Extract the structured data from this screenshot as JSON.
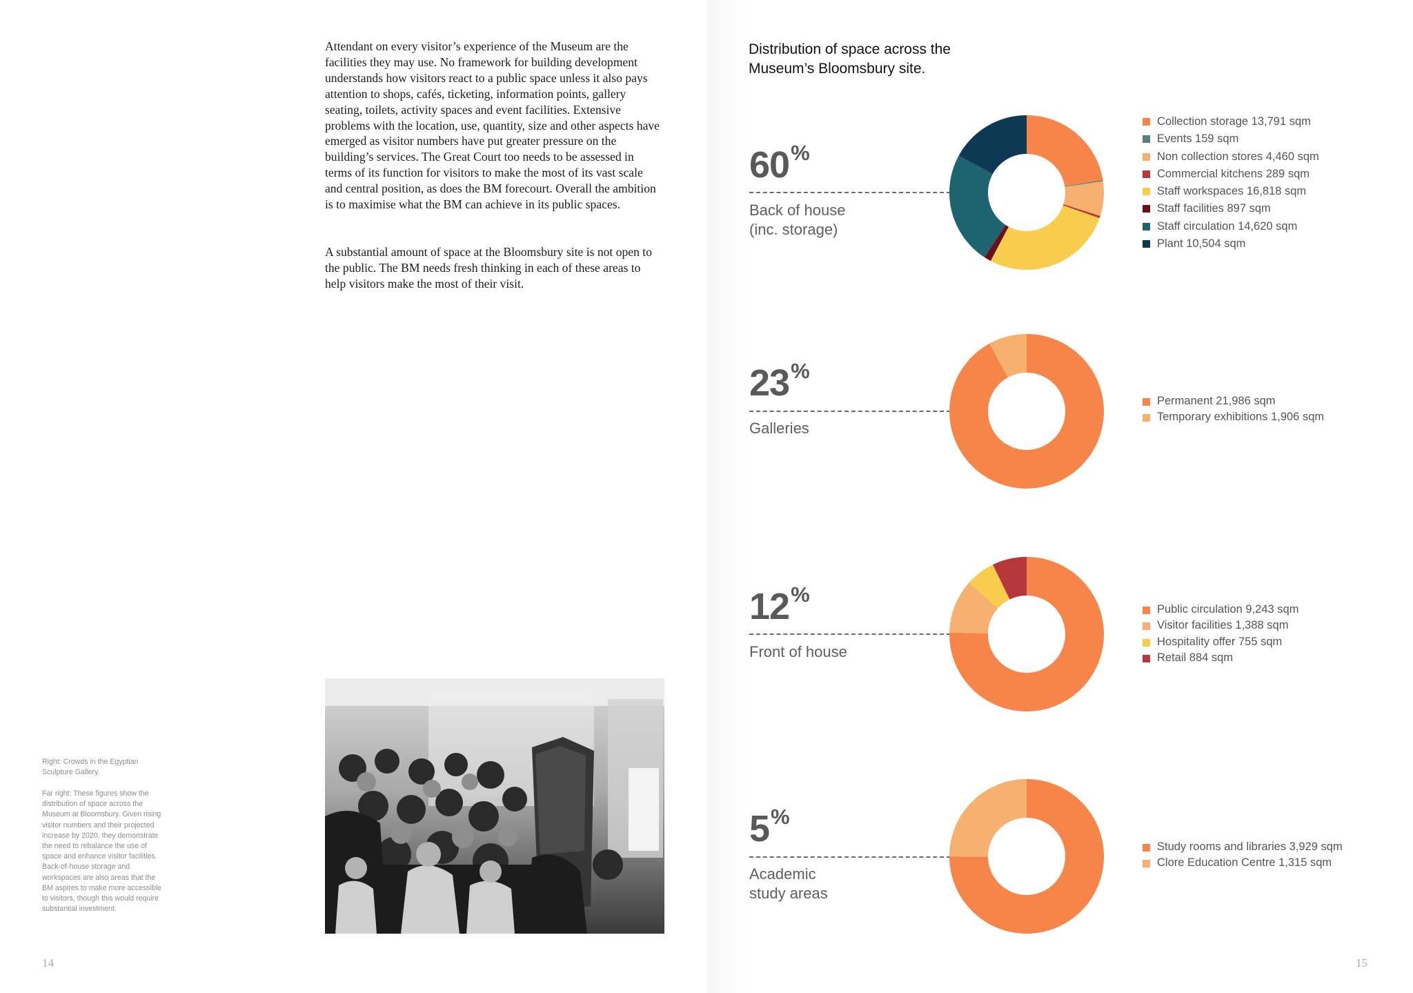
{
  "left_page": {
    "paragraphs": [
      "Attendant on every visitor’s experience of the Museum are the facilities they may use. No framework for building development understands how visitors react to a public space unless it also pays attention to shops, cafés, ticketing, information points, gallery seating, toilets, activity spaces and event facilities. Extensive problems with the location, use, quantity, size and other aspects have emerged as visitor numbers have put greater pressure on the building’s services. The Great Court too needs to be assessed in terms of its function for visitors to make the most of its vast scale and central position, as does the BM forecourt. Overall the ambition is to maximise what the BM can achieve in its public spaces.",
      "A substantial amount of space at the Bloomsbury site is not open to the public. The BM needs fresh thinking in each of these areas to help visitors make the most of their visit."
    ],
    "captions": [
      "Right: Crowds in the Egyptian Sculpture Gallery.",
      "Far right: These figures show the distribution of space across the Museum at Bloomsbury. Given rising visitor numbers and their projected increase by 2020, they demonstrate the need to rebalance the use of space and enhance visitor facilities. Back-of-house storage and workspaces are also areas that the BM aspires to make more accessible to visitors, though this would require substantial investment."
    ],
    "photo_icon": "crowd-photo",
    "page_number": "14"
  },
  "right_page": {
    "page_number": "15"
  },
  "chart_data": {
    "type": "pie",
    "title": "Distribution of space across the Museum’s Bloomsbury site.",
    "charts": [
      {
        "percent": "60",
        "percent_sign": "%",
        "label_lines": [
          "Back of house",
          "(inc. storage)"
        ],
        "slices": [
          {
            "label": "Collection storage 13,791 sqm",
            "value": 13791,
            "color": "#f58549"
          },
          {
            "label": "Events 159 sqm",
            "value": 159,
            "color": "#5d7e80"
          },
          {
            "label": "Non collection stores 4,460 sqm",
            "value": 4460,
            "color": "#f6b170"
          },
          {
            "label": "Commercial kitchens 289 sqm",
            "value": 289,
            "color": "#b5363b"
          },
          {
            "label": "Staff workspaces 16,818 sqm",
            "value": 16818,
            "color": "#f8cd4e"
          },
          {
            "label": "Staff facilities 897 sqm",
            "value": 897,
            "color": "#6b1018"
          },
          {
            "label": "Staff circulation 14,620 sqm",
            "value": 14620,
            "color": "#1d6470"
          },
          {
            "label": "Plant 10,504 sqm",
            "value": 10504,
            "color": "#0d3a52"
          }
        ]
      },
      {
        "percent": "23",
        "percent_sign": "%",
        "label_lines": [
          "Galleries"
        ],
        "slices": [
          {
            "label": "Permanent 21,986 sqm",
            "value": 21986,
            "color": "#f58549"
          },
          {
            "label": "Temporary exhibitions 1,906 sqm",
            "value": 1906,
            "color": "#f6b170"
          }
        ]
      },
      {
        "percent": "12",
        "percent_sign": "%",
        "label_lines": [
          "Front of house"
        ],
        "slices": [
          {
            "label": "Public circulation 9,243 sqm",
            "value": 9243,
            "color": "#f58549"
          },
          {
            "label": "Visitor facilities 1,388 sqm",
            "value": 1388,
            "color": "#f6b170"
          },
          {
            "label": "Hospitality offer 755 sqm",
            "value": 755,
            "color": "#f8cd4e"
          },
          {
            "label": "Retail 884 sqm",
            "value": 884,
            "color": "#b5363b"
          }
        ]
      },
      {
        "percent": "5",
        "percent_sign": "%",
        "label_lines": [
          "Academic",
          "study areas"
        ],
        "slices": [
          {
            "label": "Study rooms and libraries 3,929 sqm",
            "value": 3929,
            "color": "#f58549"
          },
          {
            "label": "Clore Education Centre 1,315 sqm",
            "value": 1315,
            "color": "#f6b170"
          }
        ]
      }
    ]
  }
}
